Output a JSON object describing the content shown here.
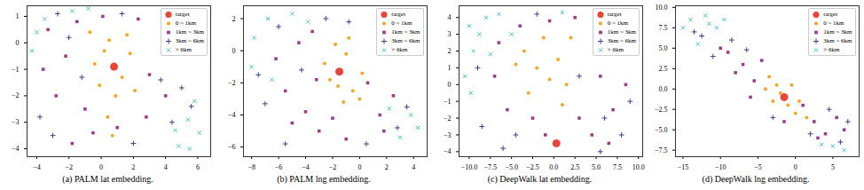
{
  "chart_data": [
    {
      "type": "scatter",
      "title": "(a) PALM lat embedding.",
      "legend": "upper right",
      "xlim": [
        -4.6,
        6.8
      ],
      "xticks": [
        -4,
        -2,
        0,
        2,
        4,
        6
      ],
      "ylim": [
        -4.3,
        1.4
      ],
      "yticks": [
        -4,
        -3,
        -2,
        -1,
        0,
        1
      ],
      "series": [
        {
          "name": "target",
          "color": "#e8443a",
          "marker": "circle",
          "values": [
            [
              0.8,
              -0.9
            ]
          ]
        },
        {
          "name": "0 ~ 1km",
          "color": "#f5a623",
          "marker": "circle",
          "values": [
            [
              0.2,
              -0.3
            ],
            [
              1.3,
              -1.3
            ],
            [
              0.5,
              0.1
            ],
            [
              -0.4,
              -0.8
            ],
            [
              1.8,
              -0.4
            ],
            [
              0.9,
              -2.0
            ],
            [
              -0.1,
              -1.6
            ],
            [
              2.1,
              -1.8
            ],
            [
              0.4,
              -2.8
            ],
            [
              1.6,
              0.3
            ],
            [
              -0.7,
              0.4
            ],
            [
              0.7,
              -3.5
            ]
          ]
        },
        {
          "name": "1km ~ 3km",
          "color": "#9a3b8c",
          "marker": "square",
          "values": [
            [
              -2.2,
              -0.5
            ],
            [
              -1.5,
              0.8
            ],
            [
              -2.8,
              -2.0
            ],
            [
              1.0,
              -3.2
            ],
            [
              -1.0,
              -2.5
            ],
            [
              3.0,
              -1.2
            ],
            [
              2.8,
              -2.8
            ],
            [
              -3.3,
              0.5
            ],
            [
              0.1,
              1.0
            ],
            [
              -1.8,
              -3.8
            ],
            [
              4.0,
              -2.0
            ],
            [
              -0.5,
              -3.4
            ],
            [
              2.3,
              0.9
            ],
            [
              -3.6,
              -1.0
            ]
          ]
        },
        {
          "name": "3km ~ 6km",
          "color": "#3b3f8c",
          "marker": "plus",
          "values": [
            [
              -3.8,
              -2.8
            ],
            [
              -2.7,
              1.1
            ],
            [
              4.4,
              -3.0
            ],
            [
              3.7,
              -1.4
            ],
            [
              -1.2,
              -1.3
            ],
            [
              5.0,
              -1.7
            ],
            [
              -3.0,
              -3.5
            ],
            [
              2.0,
              -3.8
            ],
            [
              1.3,
              1.1
            ],
            [
              -2.0,
              0.2
            ],
            [
              5.6,
              -2.4
            ]
          ]
        },
        {
          "name": "> 6km",
          "color": "#3ec1c9",
          "marker": "cross",
          "values": [
            [
              -4.3,
              -0.3
            ],
            [
              4.6,
              -3.3
            ],
            [
              5.4,
              -2.9
            ],
            [
              6.1,
              -3.4
            ],
            [
              5.8,
              -2.2
            ],
            [
              -1.8,
              1.2
            ],
            [
              -3.5,
              0.9
            ],
            [
              -0.8,
              1.3
            ],
            [
              4.8,
              -3.9
            ],
            [
              5.5,
              -4.0
            ],
            [
              -4.0,
              0.4
            ]
          ]
        }
      ]
    },
    {
      "type": "scatter",
      "title": "(b) PALM lng embedding.",
      "legend": "upper right",
      "xlim": [
        -8.6,
        5
      ],
      "xticks": [
        -8,
        -6,
        -4,
        -2,
        0,
        2,
        4
      ],
      "ylim": [
        -6.6,
        2.8
      ],
      "yticks": [
        -6,
        -4,
        -2,
        0,
        2
      ],
      "series": [
        {
          "name": "target",
          "color": "#e8443a",
          "marker": "circle",
          "values": [
            [
              -1.5,
              -1.3
            ]
          ]
        },
        {
          "name": "0 ~ 1km",
          "color": "#f5a623",
          "marker": "circle",
          "values": [
            [
              -1.0,
              -0.2
            ],
            [
              -2.2,
              -1.8
            ],
            [
              -0.5,
              -2.5
            ],
            [
              -1.8,
              0.4
            ],
            [
              -1.2,
              -3.2
            ],
            [
              0.2,
              -1.4
            ],
            [
              -2.6,
              -0.8
            ],
            [
              -0.8,
              0.8
            ],
            [
              -1.6,
              -2.2
            ],
            [
              0.0,
              -3.0
            ]
          ]
        },
        {
          "name": "1km ~ 3km",
          "color": "#9a3b8c",
          "marker": "square",
          "values": [
            [
              -5.5,
              -2.5
            ],
            [
              -4.0,
              -3.8
            ],
            [
              -3.0,
              -5.0
            ],
            [
              -1.0,
              -5.5
            ],
            [
              1.5,
              -4.0
            ],
            [
              2.5,
              -2.8
            ],
            [
              -6.2,
              -0.5
            ],
            [
              -4.5,
              0.5
            ],
            [
              -3.2,
              -1.8
            ],
            [
              0.6,
              -2.0
            ],
            [
              -2.0,
              -4.2
            ],
            [
              -5.0,
              -4.5
            ],
            [
              -3.5,
              1.2
            ],
            [
              1.8,
              -5.0
            ]
          ]
        },
        {
          "name": "3km ~ 6km",
          "color": "#3b3f8c",
          "marker": "plus",
          "values": [
            [
              -7.0,
              -3.3
            ],
            [
              -6.0,
              1.5
            ],
            [
              -4.3,
              -1.2
            ],
            [
              2.8,
              -4.8
            ],
            [
              -2.5,
              2.0
            ],
            [
              0.5,
              -5.8
            ],
            [
              3.5,
              -3.5
            ],
            [
              -5.5,
              -5.8
            ],
            [
              -7.5,
              -1.5
            ],
            [
              -0.8,
              1.8
            ]
          ]
        },
        {
          "name": "> 6km",
          "color": "#3ec1c9",
          "marker": "cross",
          "values": [
            [
              -7.8,
              0.8
            ],
            [
              -6.8,
              2.0
            ],
            [
              -5.0,
              2.3
            ],
            [
              -3.8,
              1.8
            ],
            [
              -8.0,
              -1.0
            ],
            [
              3.8,
              -4.0
            ],
            [
              4.3,
              -4.8
            ],
            [
              2.2,
              -3.6
            ],
            [
              3.0,
              -5.4
            ],
            [
              -6.5,
              -1.8
            ]
          ]
        }
      ]
    },
    {
      "type": "scatter",
      "title": "(c) DeepWalk lat embedding.",
      "legend": "upper right",
      "xlim": [
        -11.2,
        10.5
      ],
      "xticks": [
        {
          "value": -10,
          "label": "−10.0"
        },
        {
          "value": -7.5,
          "label": "−7.5"
        },
        {
          "value": -5,
          "label": "−5.0"
        },
        {
          "value": -2.5,
          "label": "−2.5"
        },
        {
          "value": 0,
          "label": "0.0"
        },
        {
          "value": 2.5,
          "label": "2.5"
        },
        {
          "value": 5,
          "label": "5.0"
        },
        {
          "value": 7.5,
          "label": "7.5"
        },
        {
          "value": 10,
          "label": "10.0"
        }
      ],
      "ylim": [
        -4.3,
        4.7
      ],
      "yticks": [
        -4,
        -3,
        -2,
        -1,
        0,
        1,
        2,
        3,
        4
      ],
      "series": [
        {
          "name": "target",
          "color": "#e8443a",
          "marker": "circle",
          "values": [
            [
              0.3,
              -3.5
            ]
          ]
        },
        {
          "name": "0 ~ 1km",
          "color": "#f5a623",
          "marker": "circle",
          "values": [
            [
              -3.5,
              2.0
            ],
            [
              -2.0,
              1.0
            ],
            [
              -1.2,
              2.8
            ],
            [
              0.5,
              1.5
            ],
            [
              -3.0,
              -0.5
            ],
            [
              1.5,
              0.0
            ],
            [
              -0.5,
              0.3
            ],
            [
              2.0,
              2.8
            ],
            [
              -4.5,
              1.2
            ],
            [
              1.0,
              -1.2
            ]
          ]
        },
        {
          "name": "1km ~ 3km",
          "color": "#9a3b8c",
          "marker": "square",
          "values": [
            [
              -7.0,
              0.5
            ],
            [
              -5.5,
              -1.5
            ],
            [
              -2.5,
              -2.0
            ],
            [
              3.0,
              -2.0
            ],
            [
              5.5,
              0.5
            ],
            [
              7.0,
              -1.5
            ],
            [
              -1.0,
              -3.0
            ],
            [
              4.5,
              -3.0
            ],
            [
              -6.5,
              2.5
            ],
            [
              2.5,
              4.0
            ],
            [
              -0.5,
              3.8
            ],
            [
              6.5,
              -3.5
            ],
            [
              8.5,
              0.0
            ],
            [
              -4.0,
              3.5
            ]
          ]
        },
        {
          "name": "3km ~ 6km",
          "color": "#3b3f8c",
          "marker": "plus",
          "values": [
            [
              -8.5,
              -2.5
            ],
            [
              -6.0,
              -3.8
            ],
            [
              6.0,
              -2.0
            ],
            [
              8.0,
              -3.0
            ],
            [
              3.0,
              0.5
            ],
            [
              -9.0,
              1.0
            ],
            [
              -2.0,
              4.2
            ],
            [
              5.5,
              -4.0
            ],
            [
              9.0,
              -1.0
            ],
            [
              -4.5,
              -3.0
            ]
          ]
        },
        {
          "name": "> 6km",
          "color": "#3ec1c9",
          "marker": "cross",
          "values": [
            [
              -10.0,
              3.5
            ],
            [
              -9.5,
              2.0
            ],
            [
              -8.0,
              4.0
            ],
            [
              -10.5,
              0.5
            ],
            [
              -7.5,
              1.8
            ],
            [
              -8.8,
              3.0
            ],
            [
              -9.8,
              -0.5
            ],
            [
              -6.5,
              4.2
            ],
            [
              -5.0,
              3.0
            ],
            [
              1.0,
              4.3
            ]
          ]
        }
      ]
    },
    {
      "type": "scatter",
      "title": "(d) DeepWalk lng embedding.",
      "legend": "upper right",
      "xlim": [
        -16,
        8.5
      ],
      "xticks": [
        -15,
        -10,
        -5,
        0,
        5
      ],
      "ylim": [
        -8.3,
        10.2
      ],
      "yticks": [
        {
          "value": -7.5,
          "label": "−7.5"
        },
        {
          "value": -5,
          "label": "−5.0"
        },
        {
          "value": -2.5,
          "label": "−2.5"
        },
        {
          "value": 0,
          "label": "0.0"
        },
        {
          "value": 2.5,
          "label": "2.5"
        },
        {
          "value": 5,
          "label": "5.0"
        },
        {
          "value": 7.5,
          "label": "7.5"
        },
        {
          "value": 10,
          "label": "10.0"
        }
      ],
      "series": [
        {
          "name": "target",
          "color": "#e8443a",
          "marker": "circle",
          "values": [
            [
              -1.5,
              -1.0
            ]
          ]
        },
        {
          "name": "0 ~ 1km",
          "color": "#f5a623",
          "marker": "circle",
          "values": [
            [
              -2.5,
              0.5
            ],
            [
              -1.0,
              -2.0
            ],
            [
              -3.5,
              1.5
            ],
            [
              0.5,
              -1.5
            ],
            [
              -2.0,
              -0.5
            ],
            [
              -4.0,
              0.0
            ],
            [
              1.5,
              -3.5
            ],
            [
              -0.5,
              0.5
            ],
            [
              -3.0,
              -1.5
            ],
            [
              0.0,
              -3.0
            ]
          ]
        },
        {
          "name": "1km ~ 3km",
          "color": "#9a3b8c",
          "marker": "square",
          "values": [
            [
              -7.0,
              3.0
            ],
            [
              -5.5,
              1.0
            ],
            [
              -9.0,
              4.5
            ],
            [
              2.5,
              -4.0
            ],
            [
              4.0,
              -5.5
            ],
            [
              -6.0,
              -1.0
            ],
            [
              1.0,
              -2.0
            ],
            [
              5.5,
              -3.5
            ],
            [
              -8.0,
              2.0
            ],
            [
              3.0,
              -6.0
            ],
            [
              -4.5,
              3.5
            ],
            [
              -10.0,
              5.0
            ],
            [
              -1.5,
              -4.0
            ],
            [
              6.5,
              -5.0
            ]
          ]
        },
        {
          "name": "3km ~ 6km",
          "color": "#3b3f8c",
          "marker": "plus",
          "values": [
            [
              -11.0,
              4.0
            ],
            [
              -12.5,
              6.5
            ],
            [
              -3.0,
              -3.5
            ],
            [
              4.5,
              -2.5
            ],
            [
              6.0,
              -6.5
            ],
            [
              -8.5,
              6.0
            ],
            [
              2.0,
              -5.5
            ],
            [
              -6.5,
              4.8
            ],
            [
              7.0,
              -4.0
            ],
            [
              -13.5,
              7.0
            ]
          ]
        },
        {
          "name": "> 6km",
          "color": "#3ec1c9",
          "marker": "cross",
          "values": [
            [
              -15.0,
              7.5
            ],
            [
              -14.0,
              8.5
            ],
            [
              -12.0,
              9.0
            ],
            [
              -10.5,
              7.5
            ],
            [
              -13.0,
              5.5
            ],
            [
              -11.5,
              8.0
            ],
            [
              5.0,
              -7.0
            ],
            [
              3.5,
              -6.8
            ],
            [
              -9.5,
              8.5
            ],
            [
              6.5,
              -7.5
            ]
          ]
        }
      ]
    }
  ]
}
